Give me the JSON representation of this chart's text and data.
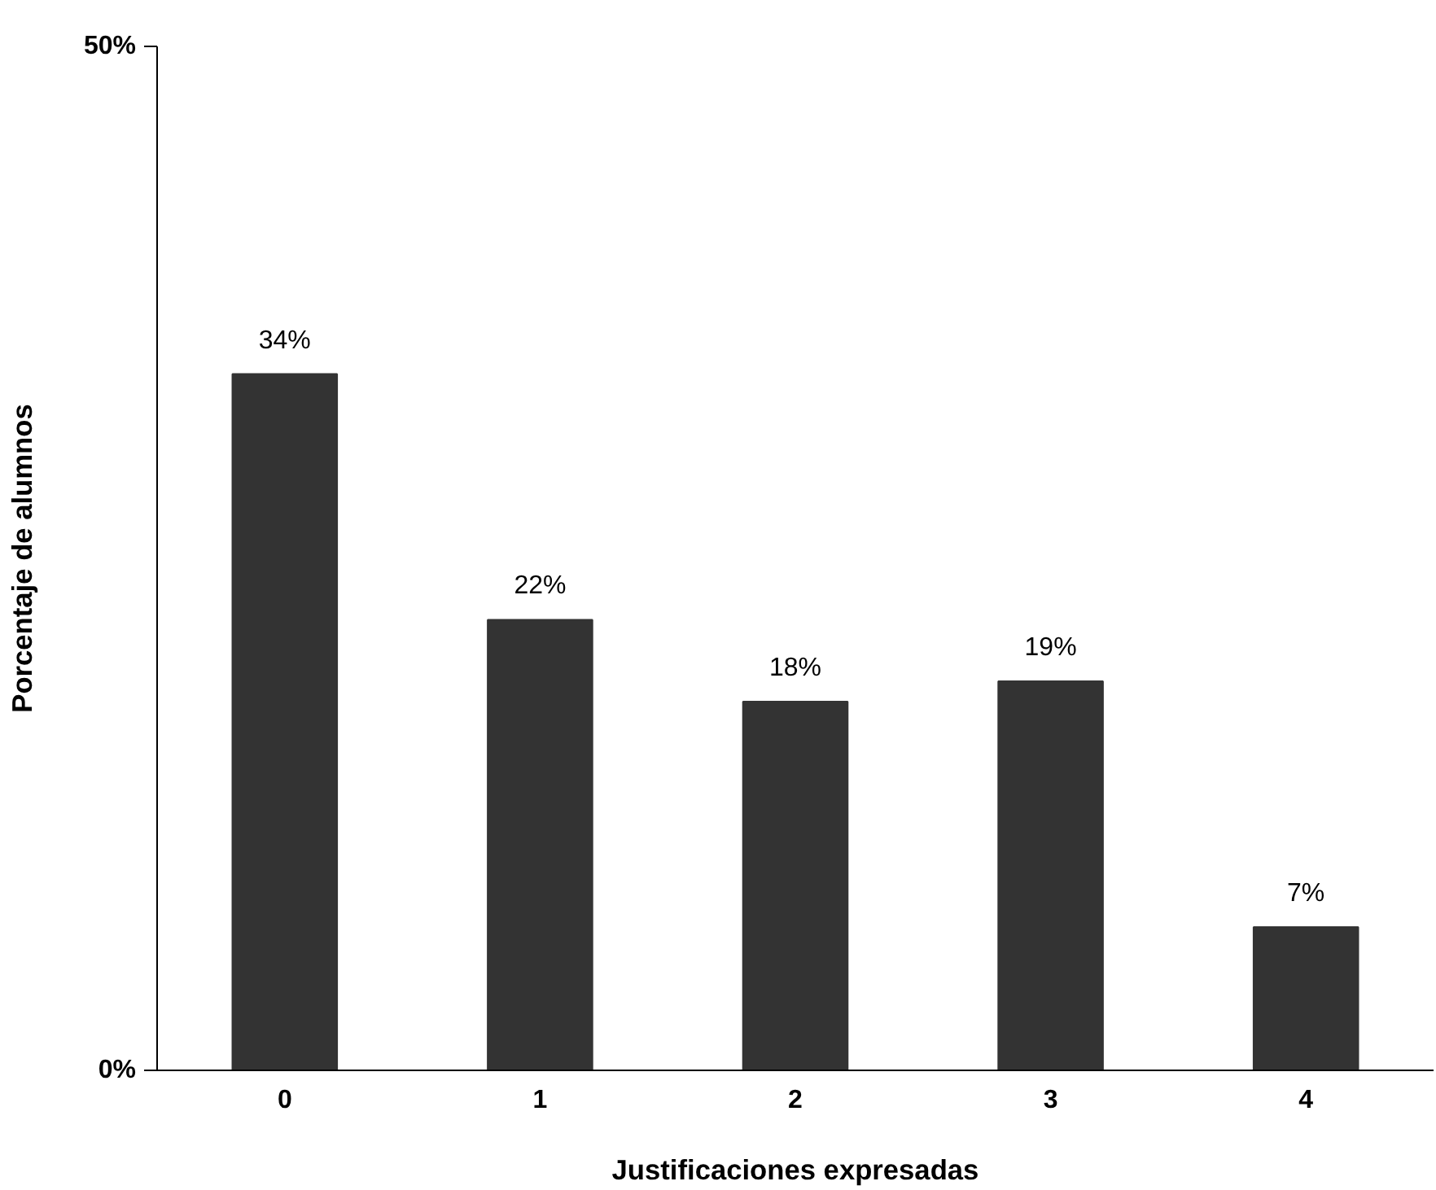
{
  "chart_data": {
    "type": "bar",
    "xlabel": "Justificaciones expresadas",
    "ylabel": "Porcentaje de alumnos",
    "categories": [
      "0",
      "1",
      "2",
      "3",
      "4"
    ],
    "values": [
      34,
      22,
      18,
      19,
      7
    ],
    "value_labels": [
      "34%",
      "22%",
      "18%",
      "19%",
      "7%"
    ],
    "color": "#333333",
    "ylim": [
      0,
      50
    ],
    "yticks": [
      {
        "value": 0,
        "label": "0%"
      },
      {
        "value": 50,
        "label": "50%"
      }
    ],
    "grid": false
  }
}
